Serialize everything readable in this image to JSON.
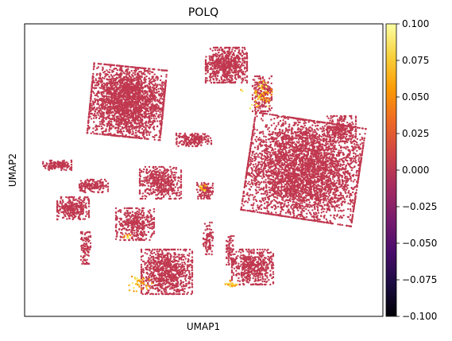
{
  "chart_data": {
    "type": "scatter",
    "title": "POLQ",
    "xlabel": "UMAP1",
    "ylabel": "UMAP2",
    "x_ticks": [],
    "y_ticks": [],
    "grid": false,
    "point_color": "#c0384f",
    "highlight_colors": [
      "#f98c0a",
      "#fcb40d",
      "#f4e65b"
    ],
    "colorbar": {
      "colormap": "inferno",
      "range": [
        -0.1,
        0.1
      ],
      "ticks": [
        -0.1,
        -0.075,
        -0.05,
        -0.025,
        0.0,
        0.025,
        0.05,
        0.075,
        0.1
      ],
      "tick_labels": [
        "−0.100",
        "−0.075",
        "−0.050",
        "−0.025",
        "0.000",
        "0.025",
        "0.050",
        "0.075",
        "0.100"
      ],
      "stops": [
        "#000004",
        "#1b0c41",
        "#4a0c6b",
        "#781c6d",
        "#a52c60",
        "#cf4446",
        "#ed6925",
        "#fb9b06",
        "#f7d13d",
        "#fcffa4"
      ]
    }
  }
}
